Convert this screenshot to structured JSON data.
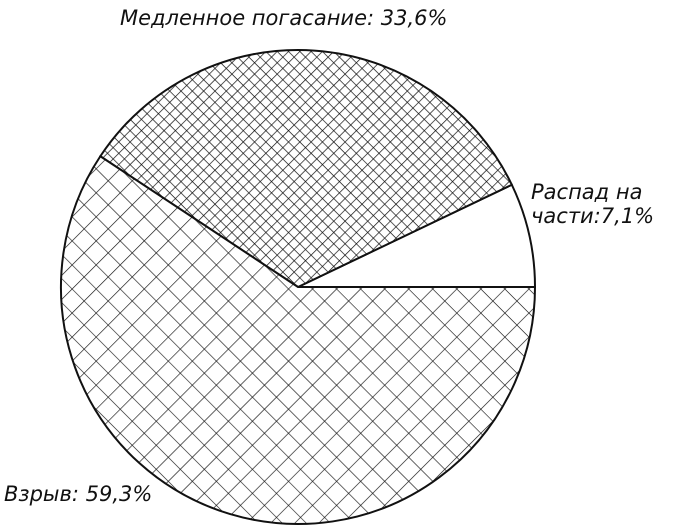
{
  "chart_data": {
    "type": "pie",
    "categories": [
      "Распад на части",
      "Медленное погасание",
      "Взрыв"
    ],
    "values": [
      7.1,
      33.6,
      59.3
    ],
    "value_labels": [
      "Распад на части:7,1%",
      "Медленное погасание: 33,6%",
      "Взрыв: 59,3%"
    ]
  }
}
